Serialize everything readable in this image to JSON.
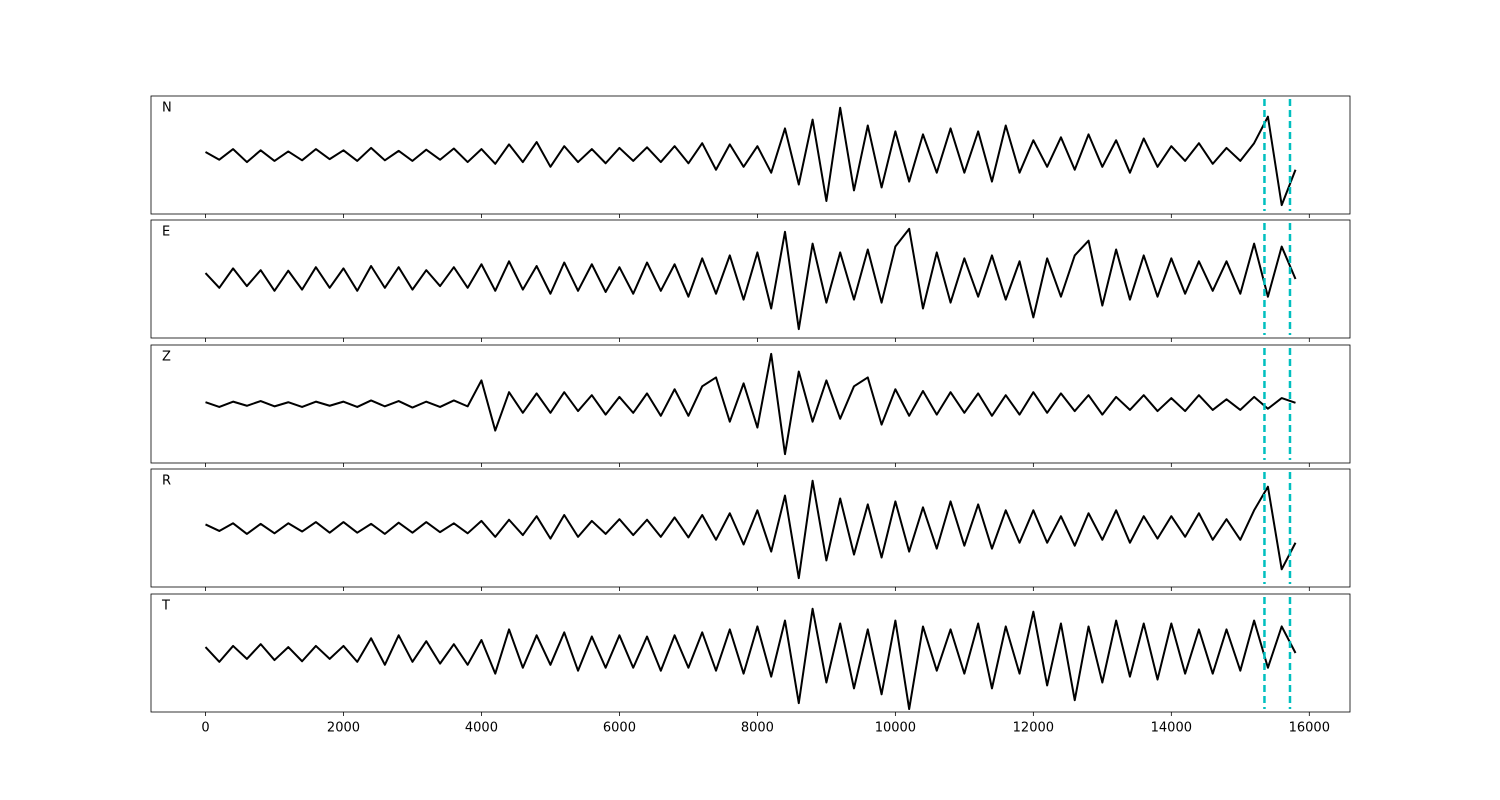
{
  "chart_data": [
    {
      "type": "line",
      "label": "N",
      "color": "#000000",
      "vlines": [
        15350,
        15720
      ],
      "vline_color": "#00bfbf",
      "vline_style": "dashed",
      "xlim": [
        -790,
        16590
      ],
      "ylim": [
        -1,
        1
      ],
      "x": [
        0,
        200,
        400,
        600,
        800,
        1000,
        1200,
        1400,
        1600,
        1800,
        2000,
        2200,
        2400,
        2600,
        2800,
        3000,
        3200,
        3400,
        3600,
        3800,
        4000,
        4200,
        4400,
        4600,
        4800,
        5000,
        5200,
        5400,
        5600,
        5800,
        6000,
        6200,
        6400,
        6600,
        6800,
        7000,
        7200,
        7400,
        7600,
        7800,
        8000,
        8200,
        8400,
        8600,
        8800,
        9000,
        9200,
        9400,
        9600,
        9800,
        10000,
        10200,
        10400,
        10600,
        10800,
        11000,
        11200,
        11400,
        11600,
        11800,
        12000,
        12200,
        12400,
        12600,
        12800,
        13000,
        13200,
        13400,
        13600,
        13800,
        14000,
        14200,
        14400,
        14600,
        14800,
        15000,
        15200,
        15400,
        15600,
        15800
      ],
      "values": [
        0.05,
        -0.08,
        0.1,
        -0.12,
        0.08,
        -0.1,
        0.06,
        -0.09,
        0.1,
        -0.07,
        0.08,
        -0.1,
        0.12,
        -0.09,
        0.07,
        -0.1,
        0.09,
        -0.08,
        0.11,
        -0.12,
        0.1,
        -0.15,
        0.18,
        -0.12,
        0.22,
        -0.2,
        0.15,
        -0.12,
        0.1,
        -0.14,
        0.12,
        -0.1,
        0.13,
        -0.12,
        0.15,
        -0.14,
        0.2,
        -0.25,
        0.18,
        -0.2,
        0.15,
        -0.3,
        0.45,
        -0.5,
        0.6,
        -0.78,
        0.8,
        -0.6,
        0.5,
        -0.55,
        0.4,
        -0.45,
        0.35,
        -0.3,
        0.45,
        -0.3,
        0.4,
        -0.45,
        0.5,
        -0.3,
        0.25,
        -0.2,
        0.3,
        -0.25,
        0.35,
        -0.2,
        0.25,
        -0.3,
        0.28,
        -0.2,
        0.15,
        -0.1,
        0.2,
        -0.15,
        0.12,
        -0.1,
        0.2,
        0.65,
        -0.85,
        -0.25
      ]
    },
    {
      "type": "line",
      "label": "E",
      "color": "#000000",
      "vlines": [
        15350,
        15720
      ],
      "vline_color": "#00bfbf",
      "vline_style": "dashed",
      "xlim": [
        -790,
        16590
      ],
      "ylim": [
        -1,
        1
      ],
      "x": [
        0,
        200,
        400,
        600,
        800,
        1000,
        1200,
        1400,
        1600,
        1800,
        2000,
        2200,
        2400,
        2600,
        2800,
        3000,
        3200,
        3400,
        3600,
        3800,
        4000,
        4200,
        4400,
        4600,
        4800,
        5000,
        5200,
        5400,
        5600,
        5800,
        6000,
        6200,
        6400,
        6600,
        6800,
        7000,
        7200,
        7400,
        7600,
        7800,
        8000,
        8200,
        8400,
        8600,
        8800,
        9000,
        9200,
        9400,
        9600,
        9800,
        10000,
        10200,
        10400,
        10600,
        10800,
        11000,
        11200,
        11400,
        11600,
        11800,
        12000,
        12200,
        12400,
        12600,
        12800,
        13000,
        13200,
        13400,
        13600,
        13800,
        14000,
        14200,
        14400,
        14600,
        14800,
        15000,
        15200,
        15400,
        15600,
        15800
      ],
      "values": [
        0.1,
        -0.15,
        0.18,
        -0.12,
        0.15,
        -0.2,
        0.14,
        -0.18,
        0.2,
        -0.15,
        0.18,
        -0.2,
        0.22,
        -0.15,
        0.2,
        -0.18,
        0.15,
        -0.12,
        0.2,
        -0.15,
        0.25,
        -0.2,
        0.3,
        -0.18,
        0.22,
        -0.25,
        0.28,
        -0.2,
        0.25,
        -0.22,
        0.2,
        -0.25,
        0.28,
        -0.2,
        0.25,
        -0.3,
        0.35,
        -0.25,
        0.4,
        -0.35,
        0.45,
        -0.5,
        0.8,
        -0.85,
        0.6,
        -0.4,
        0.45,
        -0.35,
        0.5,
        -0.4,
        0.55,
        0.85,
        -0.5,
        0.45,
        -0.4,
        0.35,
        -0.3,
        0.4,
        -0.35,
        0.3,
        -0.65,
        0.35,
        -0.3,
        0.4,
        0.65,
        -0.45,
        0.5,
        -0.35,
        0.4,
        -0.3,
        0.35,
        -0.25,
        0.3,
        -0.2,
        0.3,
        -0.25,
        0.6,
        -0.3,
        0.55,
        0.0
      ]
    },
    {
      "type": "line",
      "label": "Z",
      "color": "#000000",
      "vlines": [
        15350,
        15720
      ],
      "vline_color": "#00bfbf",
      "vline_style": "dashed",
      "xlim": [
        -790,
        16590
      ],
      "ylim": [
        -1,
        1
      ],
      "x": [
        0,
        200,
        400,
        600,
        800,
        1000,
        1200,
        1400,
        1600,
        1800,
        2000,
        2200,
        2400,
        2600,
        2800,
        3000,
        3200,
        3400,
        3600,
        3800,
        4000,
        4200,
        4400,
        4600,
        4800,
        5000,
        5200,
        5400,
        5600,
        5800,
        6000,
        6200,
        6400,
        6600,
        6800,
        7000,
        7200,
        7400,
        7600,
        7800,
        8000,
        8200,
        8400,
        8600,
        8800,
        9000,
        9200,
        9400,
        9600,
        9800,
        10000,
        10200,
        10400,
        10600,
        10800,
        11000,
        11200,
        11400,
        11600,
        11800,
        12000,
        12200,
        12400,
        12600,
        12800,
        13000,
        13200,
        13400,
        13600,
        13800,
        14000,
        14200,
        14400,
        14600,
        14800,
        15000,
        15200,
        15400,
        15600,
        15800
      ],
      "values": [
        0.03,
        -0.05,
        0.04,
        -0.03,
        0.05,
        -0.04,
        0.03,
        -0.05,
        0.04,
        -0.03,
        0.04,
        -0.05,
        0.06,
        -0.04,
        0.05,
        -0.06,
        0.04,
        -0.05,
        0.06,
        -0.04,
        0.4,
        -0.45,
        0.2,
        -0.15,
        0.18,
        -0.15,
        0.2,
        -0.12,
        0.15,
        -0.18,
        0.12,
        -0.15,
        0.18,
        -0.2,
        0.25,
        -0.2,
        0.3,
        0.45,
        -0.3,
        0.35,
        -0.4,
        0.85,
        -0.85,
        0.55,
        -0.3,
        0.4,
        -0.25,
        0.3,
        0.45,
        -0.35,
        0.25,
        -0.2,
        0.22,
        -0.18,
        0.2,
        -0.15,
        0.18,
        -0.2,
        0.15,
        -0.18,
        0.2,
        -0.15,
        0.18,
        -0.12,
        0.15,
        -0.18,
        0.12,
        -0.1,
        0.15,
        -0.12,
        0.1,
        -0.12,
        0.15,
        -0.1,
        0.08,
        -0.1,
        0.12,
        -0.08,
        0.1,
        0.02
      ]
    },
    {
      "type": "line",
      "label": "R",
      "color": "#000000",
      "vlines": [
        15350,
        15720
      ],
      "vline_color": "#00bfbf",
      "vline_style": "dashed",
      "xlim": [
        -790,
        16590
      ],
      "ylim": [
        -1,
        1
      ],
      "x": [
        0,
        200,
        400,
        600,
        800,
        1000,
        1200,
        1400,
        1600,
        1800,
        2000,
        2200,
        2400,
        2600,
        2800,
        3000,
        3200,
        3400,
        3600,
        3800,
        4000,
        4200,
        4400,
        4600,
        4800,
        5000,
        5200,
        5400,
        5600,
        5800,
        6000,
        6200,
        6400,
        6600,
        6800,
        7000,
        7200,
        7400,
        7600,
        7800,
        8000,
        8200,
        8400,
        8600,
        8800,
        9000,
        9200,
        9400,
        9600,
        9800,
        10000,
        10200,
        10400,
        10600,
        10800,
        11000,
        11200,
        11400,
        11600,
        11800,
        12000,
        12200,
        12400,
        12600,
        12800,
        13000,
        13200,
        13400,
        13600,
        13800,
        14000,
        14200,
        14400,
        14600,
        14800,
        15000,
        15200,
        15400,
        15600,
        15800
      ],
      "values": [
        0.06,
        -0.05,
        0.08,
        -0.1,
        0.07,
        -0.09,
        0.08,
        -0.06,
        0.1,
        -0.08,
        0.1,
        -0.08,
        0.07,
        -0.1,
        0.09,
        -0.08,
        0.1,
        -0.07,
        0.08,
        -0.09,
        0.12,
        -0.15,
        0.14,
        -0.12,
        0.2,
        -0.18,
        0.22,
        -0.15,
        0.12,
        -0.1,
        0.15,
        -0.12,
        0.14,
        -0.15,
        0.18,
        -0.16,
        0.22,
        -0.2,
        0.25,
        -0.28,
        0.3,
        -0.4,
        0.55,
        -0.85,
        0.8,
        -0.55,
        0.5,
        -0.45,
        0.4,
        -0.5,
        0.45,
        -0.4,
        0.35,
        -0.35,
        0.45,
        -0.3,
        0.4,
        -0.35,
        0.3,
        -0.25,
        0.3,
        -0.25,
        0.2,
        -0.3,
        0.25,
        -0.2,
        0.3,
        -0.25,
        0.2,
        -0.18,
        0.2,
        -0.15,
        0.25,
        -0.2,
        0.15,
        -0.2,
        0.3,
        0.7,
        -0.7,
        -0.25
      ]
    },
    {
      "type": "line",
      "label": "T",
      "color": "#000000",
      "vlines": [
        15350,
        15720
      ],
      "vline_color": "#00bfbf",
      "vline_style": "dashed",
      "xlim": [
        -790,
        16590
      ],
      "ylim": [
        -1,
        1
      ],
      "xticks": [
        0,
        2000,
        4000,
        6000,
        8000,
        10000,
        12000,
        14000,
        16000
      ],
      "x": [
        0,
        200,
        400,
        600,
        800,
        1000,
        1200,
        1400,
        1600,
        1800,
        2000,
        2200,
        2400,
        2600,
        2800,
        3000,
        3200,
        3400,
        3600,
        3800,
        4000,
        4200,
        4400,
        4600,
        4800,
        5000,
        5200,
        5400,
        5600,
        5800,
        6000,
        6200,
        6400,
        6600,
        6800,
        7000,
        7200,
        7400,
        7600,
        7800,
        8000,
        8200,
        8400,
        8600,
        8800,
        9000,
        9200,
        9400,
        9600,
        9800,
        10000,
        10200,
        10400,
        10600,
        10800,
        11000,
        11200,
        11400,
        11600,
        11800,
        12000,
        12200,
        12400,
        12600,
        12800,
        13000,
        13200,
        13400,
        13600,
        13800,
        14000,
        14200,
        14400,
        14600,
        14800,
        15000,
        15200,
        15400,
        15600,
        15800
      ],
      "values": [
        0.1,
        -0.15,
        0.12,
        -0.1,
        0.15,
        -0.12,
        0.1,
        -0.14,
        0.12,
        -0.1,
        0.12,
        -0.15,
        0.25,
        -0.2,
        0.3,
        -0.15,
        0.2,
        -0.18,
        0.15,
        -0.2,
        0.22,
        -0.35,
        0.4,
        -0.25,
        0.3,
        -0.2,
        0.35,
        -0.3,
        0.28,
        -0.25,
        0.3,
        -0.25,
        0.28,
        -0.3,
        0.3,
        -0.25,
        0.35,
        -0.3,
        0.4,
        -0.35,
        0.45,
        -0.4,
        0.55,
        -0.85,
        0.75,
        -0.5,
        0.5,
        -0.6,
        0.4,
        -0.7,
        0.55,
        -0.95,
        0.45,
        -0.3,
        0.4,
        -0.35,
        0.5,
        -0.6,
        0.45,
        -0.35,
        0.7,
        -0.55,
        0.5,
        -0.8,
        0.45,
        -0.5,
        0.55,
        -0.4,
        0.5,
        -0.45,
        0.5,
        -0.35,
        0.4,
        -0.35,
        0.4,
        -0.3,
        0.55,
        -0.25,
        0.45,
        0.0
      ]
    }
  ]
}
